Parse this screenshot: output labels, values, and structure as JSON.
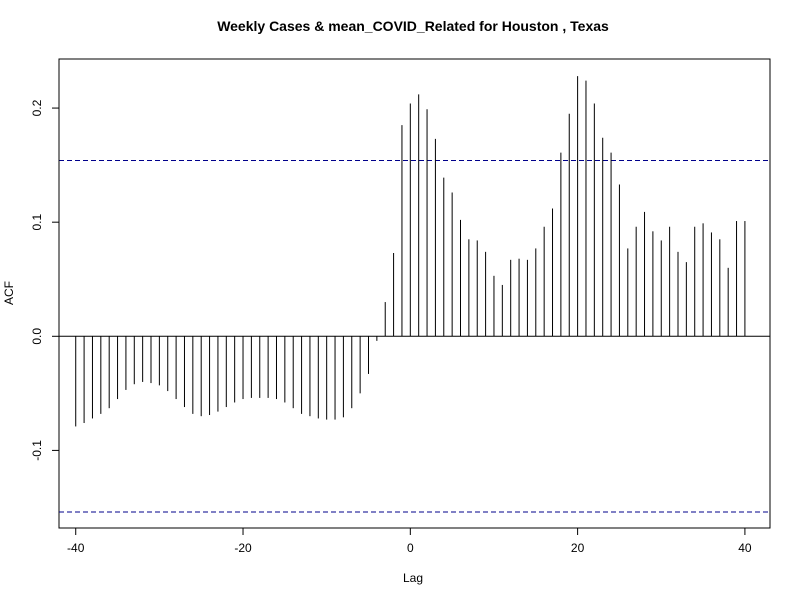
{
  "chart_data": {
    "type": "bar",
    "title": "Weekly Cases & mean_COVID_Related for Houston , Texas",
    "xlabel": "Lag",
    "ylabel": "ACF",
    "xlim": [
      -42,
      43
    ],
    "ylim": [
      -0.168,
      0.243
    ],
    "x_ticks": [
      -40,
      -20,
      0,
      20,
      40
    ],
    "x_tick_labels": [
      "-40",
      "-20",
      "0",
      "20",
      "40"
    ],
    "y_ticks": [
      -0.1,
      0.0,
      0.1,
      0.2
    ],
    "y_tick_labels": [
      "-0.1",
      "0.0",
      "0.1",
      "0.2"
    ],
    "confidence_band": 0.154,
    "colors": {
      "bars": "#000000",
      "band": "#00008B",
      "zero_line": "#000000"
    },
    "grid": false,
    "lags": [
      -40,
      -39,
      -38,
      -37,
      -36,
      -35,
      -34,
      -33,
      -32,
      -31,
      -30,
      -29,
      -28,
      -27,
      -26,
      -25,
      -24,
      -23,
      -22,
      -21,
      -20,
      -19,
      -18,
      -17,
      -16,
      -15,
      -14,
      -13,
      -12,
      -11,
      -10,
      -9,
      -8,
      -7,
      -6,
      -5,
      -4,
      -3,
      -2,
      -1,
      0,
      1,
      2,
      3,
      4,
      5,
      6,
      7,
      8,
      9,
      10,
      11,
      12,
      13,
      14,
      15,
      16,
      17,
      18,
      19,
      20,
      21,
      22,
      23,
      24,
      25,
      26,
      27,
      28,
      29,
      30,
      31,
      32,
      33,
      34,
      35,
      36,
      37,
      38,
      39,
      40
    ],
    "values": [
      -0.079,
      -0.076,
      -0.072,
      -0.068,
      -0.063,
      -0.055,
      -0.047,
      -0.042,
      -0.04,
      -0.041,
      -0.043,
      -0.048,
      -0.055,
      -0.062,
      -0.068,
      -0.07,
      -0.069,
      -0.066,
      -0.062,
      -0.058,
      -0.055,
      -0.054,
      -0.054,
      -0.054,
      -0.055,
      -0.058,
      -0.063,
      -0.068,
      -0.07,
      -0.072,
      -0.073,
      -0.073,
      -0.071,
      -0.063,
      -0.05,
      -0.033,
      -0.004,
      0.03,
      0.073,
      0.185,
      0.204,
      0.212,
      0.199,
      0.173,
      0.139,
      0.126,
      0.102,
      0.085,
      0.084,
      0.074,
      0.053,
      0.045,
      0.067,
      0.068,
      0.067,
      0.077,
      0.096,
      0.112,
      0.161,
      0.195,
      0.228,
      0.224,
      0.204,
      0.174,
      0.161,
      0.133,
      0.077,
      0.096,
      0.109,
      0.092,
      0.084,
      0.096,
      0.074,
      0.065,
      0.096,
      0.099,
      0.091,
      0.085,
      0.06,
      0.101,
      0.101
    ]
  }
}
